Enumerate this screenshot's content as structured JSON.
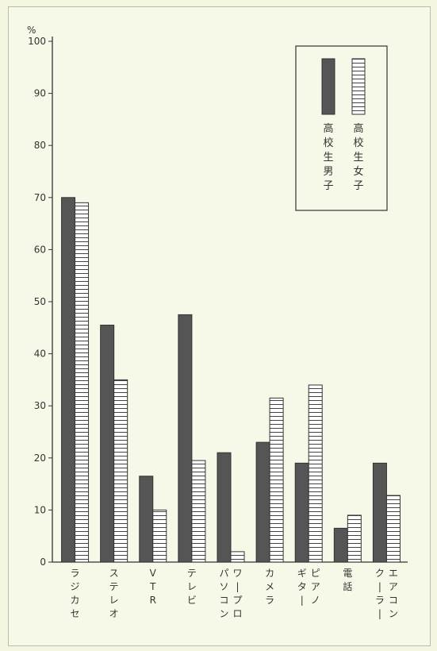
{
  "chart_data": {
    "type": "bar",
    "ylabel": "%",
    "ylim": [
      0,
      100
    ],
    "yticks": [
      "0",
      "10",
      "20",
      "30",
      "40",
      "50",
      "60",
      "70",
      "80",
      "90",
      "100"
    ],
    "categories": [
      [
        "ラジカセ"
      ],
      [
        "ステレオ"
      ],
      [
        "VTR"
      ],
      [
        "テレビ"
      ],
      [
        "パソコン",
        "ワープロ"
      ],
      [
        "カメラ"
      ],
      [
        "ギター",
        "ピアノ"
      ],
      [
        "電話"
      ],
      [
        "クーラー",
        "エアコン"
      ]
    ],
    "series": [
      {
        "name": "高校生男子",
        "values": [
          70,
          45.5,
          16.5,
          47.5,
          21,
          23,
          19,
          6.5,
          19
        ],
        "color": "#555555",
        "pattern": "solid"
      },
      {
        "name": "高校生女子",
        "values": [
          69,
          35,
          10,
          19.5,
          2,
          31.5,
          34,
          9,
          12.8
        ],
        "color": "#ffffff",
        "pattern": "hlines"
      }
    ],
    "legend": "top-right",
    "grid": false
  }
}
